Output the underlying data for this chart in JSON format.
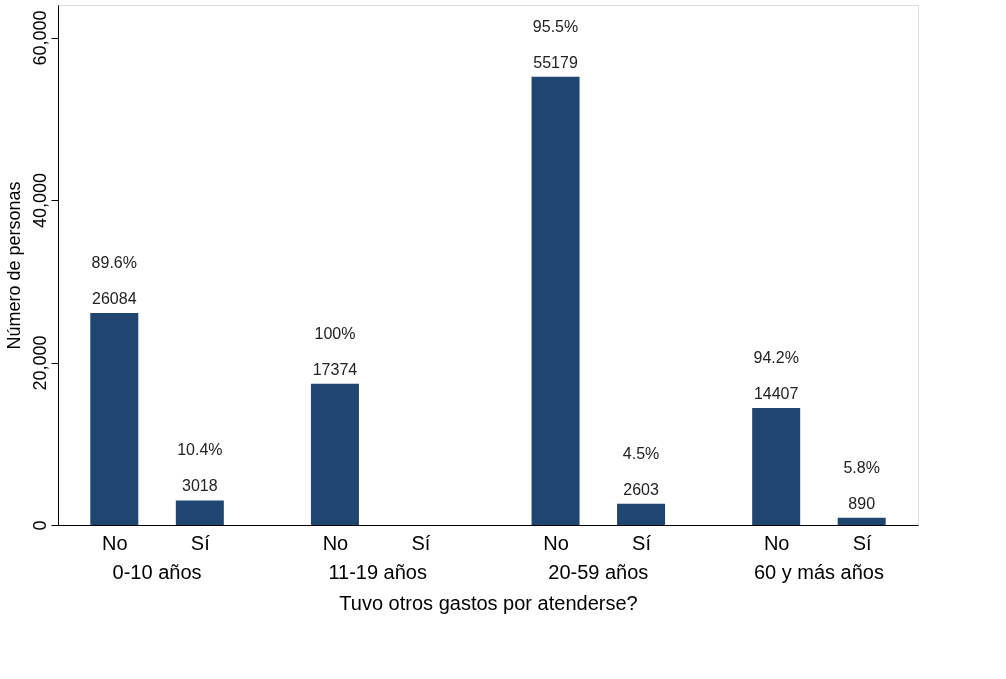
{
  "chart_data": {
    "type": "bar",
    "xlabel": "Tuvo otros gastos por atenderse?",
    "ylabel": "Número de personas",
    "categories": [
      "No",
      "Sí",
      "No",
      "Sí",
      "No",
      "Sí",
      "No",
      "Sí"
    ],
    "values": [
      26084,
      3018,
      17374,
      null,
      55179,
      2603,
      14407,
      890
    ],
    "color": "#1f4670",
    "data_labels": true,
    "ylim": [
      0,
      64000
    ],
    "yticks": [
      0,
      {
        "value": 20000,
        "label": "20,000"
      },
      {
        "value": 40000,
        "label": "40,000"
      },
      {
        "value": 60000,
        "label": "60,000"
      }
    ],
    "grid": false,
    "annotations": [
      "89.6%",
      "10.4%",
      "100%",
      "95.5%",
      "4.5%",
      "94.2%",
      "5.8%",
      "0-10 años",
      "11-19 años",
      "20-59 años",
      "60 y más años"
    ]
  }
}
